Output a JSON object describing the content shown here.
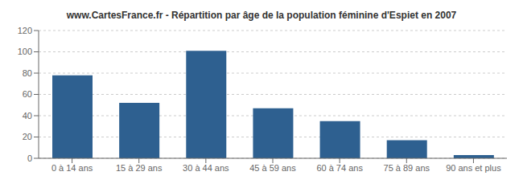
{
  "chart_data": {
    "type": "bar",
    "title": "www.CartesFrance.fr - Répartition par âge de la population féminine d'Espiet en 2007",
    "categories": [
      "0 à 14 ans",
      "15 à 29 ans",
      "30 à 44 ans",
      "45 à 59 ans",
      "60 à 74 ans",
      "75 à 89 ans",
      "90 ans et plus"
    ],
    "values": [
      78,
      52,
      101,
      47,
      35,
      17,
      3
    ],
    "color": "#2e6090",
    "ylim": [
      0,
      120
    ],
    "yticks": [
      0,
      20,
      40,
      60,
      80,
      100,
      120
    ],
    "grid": true
  }
}
